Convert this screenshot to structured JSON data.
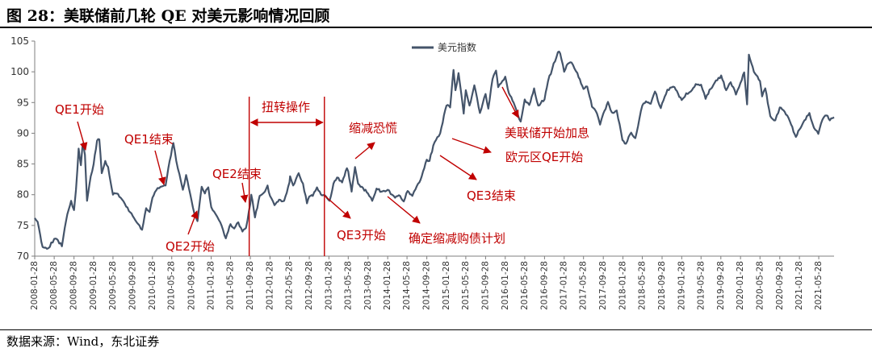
{
  "figure": {
    "title": "图 28：美联储前几轮 QE 对美元影响情况回顾",
    "source": "数据来源：Wind，东北证券"
  },
  "colors": {
    "series": "#44546a",
    "annotation": "#c00000",
    "axis": "#7f7f7f"
  },
  "chart_data": {
    "type": "line",
    "title": "",
    "xlabel": "",
    "ylabel": "",
    "ylim": [
      70,
      105
    ],
    "yticks": [
      70,
      75,
      80,
      85,
      90,
      95,
      100,
      105
    ],
    "xlim": [
      "2008-01-28",
      "2021-08-31"
    ],
    "xticks": [
      "2008-01-28",
      "2008-05-28",
      "2008-09-28",
      "2009-01-28",
      "2009-05-28",
      "2009-09-28",
      "2010-01-28",
      "2010-05-28",
      "2010-09-28",
      "2011-01-28",
      "2011-05-28",
      "2011-09-28",
      "2012-01-28",
      "2012-05-28",
      "2012-09-28",
      "2013-01-28",
      "2013-05-28",
      "2013-09-28",
      "2014-01-28",
      "2014-05-28",
      "2014-09-28",
      "2015-01-28",
      "2015-05-28",
      "2015-09-28",
      "2016-01-28",
      "2016-05-28",
      "2016-09-28",
      "2017-01-28",
      "2017-05-28",
      "2017-09-28",
      "2018-01-28",
      "2018-05-28",
      "2018-09-28",
      "2019-01-28",
      "2019-05-28",
      "2019-09-28",
      "2020-01-28",
      "2020-05-28",
      "2020-09-28",
      "2021-01-28",
      "2021-05-28"
    ],
    "grid": false,
    "legend": {
      "position": "top-center"
    },
    "series": [
      {
        "name": "美元指数",
        "points": [
          [
            "2008-01-28",
            76.2
          ],
          [
            "2008-02-15",
            75.6
          ],
          [
            "2008-03-17",
            71.5
          ],
          [
            "2008-04-22",
            71.3
          ],
          [
            "2008-05-28",
            72.8
          ],
          [
            "2008-06-20",
            72.6
          ],
          [
            "2008-07-15",
            71.6
          ],
          [
            "2008-08-10",
            75.8
          ],
          [
            "2008-08-25",
            77.5
          ],
          [
            "2008-09-10",
            79.0
          ],
          [
            "2008-09-28",
            77.5
          ],
          [
            "2008-10-10",
            80.8
          ],
          [
            "2008-10-27",
            87.5
          ],
          [
            "2008-11-10",
            84.8
          ],
          [
            "2008-11-21",
            88.3
          ],
          [
            "2008-12-05",
            86.5
          ],
          [
            "2008-12-18",
            79.0
          ],
          [
            "2009-01-10",
            83.0
          ],
          [
            "2009-01-28",
            85.0
          ],
          [
            "2009-02-18",
            88.8
          ],
          [
            "2009-03-04",
            89.0
          ],
          [
            "2009-03-19",
            83.5
          ],
          [
            "2009-04-10",
            85.5
          ],
          [
            "2009-04-28",
            84.5
          ],
          [
            "2009-05-28",
            80.0
          ],
          [
            "2009-06-20",
            80.2
          ],
          [
            "2009-07-15",
            79.5
          ],
          [
            "2009-08-10",
            78.5
          ],
          [
            "2009-09-28",
            76.5
          ],
          [
            "2009-10-15",
            75.8
          ],
          [
            "2009-11-25",
            74.3
          ],
          [
            "2009-12-20",
            77.8
          ],
          [
            "2010-01-10",
            77.2
          ],
          [
            "2010-01-28",
            79.5
          ],
          [
            "2010-02-20",
            80.7
          ],
          [
            "2010-03-20",
            81.3
          ],
          [
            "2010-04-20",
            81.5
          ],
          [
            "2010-05-15",
            85.5
          ],
          [
            "2010-06-07",
            88.4
          ],
          [
            "2010-06-25",
            85.5
          ],
          [
            "2010-07-15",
            83.3
          ],
          [
            "2010-08-05",
            80.8
          ],
          [
            "2010-08-25",
            83.2
          ],
          [
            "2010-09-28",
            79.0
          ],
          [
            "2010-10-15",
            77.0
          ],
          [
            "2010-11-04",
            75.7
          ],
          [
            "2010-11-30",
            81.3
          ],
          [
            "2010-12-20",
            80.2
          ],
          [
            "2011-01-10",
            81.2
          ],
          [
            "2011-01-28",
            78.0
          ],
          [
            "2011-02-25",
            76.8
          ],
          [
            "2011-03-25",
            75.5
          ],
          [
            "2011-04-29",
            72.9
          ],
          [
            "2011-05-28",
            75.2
          ],
          [
            "2011-06-20",
            74.5
          ],
          [
            "2011-07-15",
            75.5
          ],
          [
            "2011-08-10",
            74.0
          ],
          [
            "2011-09-01",
            74.6
          ],
          [
            "2011-09-28",
            78.5
          ],
          [
            "2011-10-04",
            80.0
          ],
          [
            "2011-10-27",
            76.3
          ],
          [
            "2011-11-25",
            79.8
          ],
          [
            "2011-12-20",
            80.3
          ],
          [
            "2012-01-13",
            81.5
          ],
          [
            "2012-01-28",
            79.8
          ],
          [
            "2012-02-25",
            78.3
          ],
          [
            "2012-03-25",
            79.2
          ],
          [
            "2012-04-25",
            79.0
          ],
          [
            "2012-05-28",
            82.0
          ],
          [
            "2012-06-01",
            83.0
          ],
          [
            "2012-06-20",
            81.5
          ],
          [
            "2012-07-24",
            83.5
          ],
          [
            "2012-08-20",
            81.8
          ],
          [
            "2012-09-14",
            78.6
          ],
          [
            "2012-09-28",
            79.7
          ],
          [
            "2012-10-20",
            79.8
          ],
          [
            "2012-11-15",
            81.2
          ],
          [
            "2012-12-10",
            80.0
          ],
          [
            "2013-01-10",
            79.7
          ],
          [
            "2013-02-01",
            79.0
          ],
          [
            "2013-02-25",
            81.8
          ],
          [
            "2013-03-20",
            82.8
          ],
          [
            "2013-04-20",
            82.0
          ],
          [
            "2013-05-20",
            84.3
          ],
          [
            "2013-05-28",
            83.8
          ],
          [
            "2013-06-18",
            80.5
          ],
          [
            "2013-07-09",
            84.5
          ],
          [
            "2013-07-28",
            81.8
          ],
          [
            "2013-08-20",
            81.3
          ],
          [
            "2013-09-28",
            80.2
          ],
          [
            "2013-10-24",
            79.0
          ],
          [
            "2013-11-20",
            81.0
          ],
          [
            "2013-12-20",
            80.5
          ],
          [
            "2014-01-28",
            80.8
          ],
          [
            "2014-02-25",
            80.0
          ],
          [
            "2014-03-15",
            79.5
          ],
          [
            "2014-04-15",
            79.8
          ],
          [
            "2014-05-08",
            78.9
          ],
          [
            "2014-06-01",
            80.6
          ],
          [
            "2014-06-30",
            79.8
          ],
          [
            "2014-07-20",
            80.9
          ],
          [
            "2014-08-20",
            82.4
          ],
          [
            "2014-09-28",
            85.7
          ],
          [
            "2014-10-15",
            85.5
          ],
          [
            "2014-11-07",
            88.0
          ],
          [
            "2014-12-20",
            90.0
          ],
          [
            "2015-01-28",
            94.5
          ],
          [
            "2015-02-20",
            94.2
          ],
          [
            "2015-03-13",
            100.3
          ],
          [
            "2015-03-25",
            97.0
          ],
          [
            "2015-04-13",
            99.8
          ],
          [
            "2015-05-15",
            93.2
          ],
          [
            "2015-05-28",
            97.0
          ],
          [
            "2015-06-20",
            94.5
          ],
          [
            "2015-07-20",
            97.8
          ],
          [
            "2015-08-24",
            93.3
          ],
          [
            "2015-09-28",
            96.4
          ],
          [
            "2015-10-15",
            94.0
          ],
          [
            "2015-11-10",
            98.8
          ],
          [
            "2015-12-02",
            100.2
          ],
          [
            "2015-12-15",
            97.5
          ],
          [
            "2016-01-28",
            99.2
          ],
          [
            "2016-02-20",
            96.5
          ],
          [
            "2016-03-20",
            95.0
          ],
          [
            "2016-05-03",
            91.9
          ],
          [
            "2016-05-28",
            95.5
          ],
          [
            "2016-06-25",
            94.6
          ],
          [
            "2016-07-25",
            97.3
          ],
          [
            "2016-08-20",
            94.5
          ],
          [
            "2016-09-28",
            95.5
          ],
          [
            "2016-10-20",
            98.5
          ],
          [
            "2016-11-15",
            100.5
          ],
          [
            "2016-12-20",
            103.2
          ],
          [
            "2017-01-03",
            103.0
          ],
          [
            "2017-01-28",
            100.0
          ],
          [
            "2017-02-20",
            101.3
          ],
          [
            "2017-03-15",
            101.5
          ],
          [
            "2017-04-20",
            99.8
          ],
          [
            "2017-05-28",
            97.2
          ],
          [
            "2017-06-20",
            97.6
          ],
          [
            "2017-07-20",
            94.3
          ],
          [
            "2017-08-20",
            93.2
          ],
          [
            "2017-09-08",
            91.4
          ],
          [
            "2017-09-28",
            93.2
          ],
          [
            "2017-10-27",
            95.1
          ],
          [
            "2017-11-20",
            93.4
          ],
          [
            "2017-12-20",
            93.7
          ],
          [
            "2018-01-25",
            88.9
          ],
          [
            "2018-02-16",
            88.3
          ],
          [
            "2018-03-20",
            90.1
          ],
          [
            "2018-04-15",
            89.2
          ],
          [
            "2018-05-28",
            94.5
          ],
          [
            "2018-06-20",
            95.2
          ],
          [
            "2018-07-20",
            94.8
          ],
          [
            "2018-08-15",
            96.8
          ],
          [
            "2018-09-20",
            94.1
          ],
          [
            "2018-10-31",
            97.1
          ],
          [
            "2018-12-14",
            97.5
          ],
          [
            "2019-01-28",
            95.4
          ],
          [
            "2019-02-25",
            96.5
          ],
          [
            "2019-03-25",
            96.8
          ],
          [
            "2019-04-25",
            98.0
          ],
          [
            "2019-05-28",
            97.9
          ],
          [
            "2019-06-25",
            95.6
          ],
          [
            "2019-07-20",
            97.1
          ],
          [
            "2019-08-20",
            98.2
          ],
          [
            "2019-09-30",
            99.4
          ],
          [
            "2019-10-31",
            97.0
          ],
          [
            "2019-11-28",
            98.3
          ],
          [
            "2019-12-31",
            96.3
          ],
          [
            "2020-01-28",
            98.2
          ],
          [
            "2020-02-20",
            99.9
          ],
          [
            "2020-03-09",
            94.7
          ],
          [
            "2020-03-20",
            102.8
          ],
          [
            "2020-04-20",
            100.0
          ],
          [
            "2020-05-28",
            98.5
          ],
          [
            "2020-06-10",
            96.0
          ],
          [
            "2020-06-30",
            97.3
          ],
          [
            "2020-07-31",
            92.8
          ],
          [
            "2020-08-31",
            92.1
          ],
          [
            "2020-09-28",
            94.2
          ],
          [
            "2020-10-28",
            93.5
          ],
          [
            "2020-11-30",
            91.9
          ],
          [
            "2021-01-06",
            89.4
          ],
          [
            "2021-01-28",
            90.6
          ],
          [
            "2021-03-31",
            93.3
          ],
          [
            "2021-04-28",
            90.9
          ],
          [
            "2021-05-25",
            89.9
          ],
          [
            "2021-06-20",
            92.2
          ],
          [
            "2021-07-15",
            92.9
          ],
          [
            "2021-08-05",
            92.1
          ],
          [
            "2021-08-31",
            92.6
          ]
        ]
      }
    ],
    "annotations": [
      {
        "id": "qe1-start",
        "text": "QE1开始"
      },
      {
        "id": "qe1-end",
        "text": "QE1结束"
      },
      {
        "id": "qe2-start",
        "text": "QE2开始"
      },
      {
        "id": "qe2-end",
        "text": "QE2结束"
      },
      {
        "id": "twist",
        "text": "扭转操作",
        "range": [
          "2011-09-21",
          "2012-12-31"
        ]
      },
      {
        "id": "qe3-start",
        "text": "QE3开始"
      },
      {
        "id": "taper-tantrum",
        "text": "缩减恐慌"
      },
      {
        "id": "taper-decided",
        "text": "确定缩减购债计划"
      },
      {
        "id": "qe3-end",
        "text": "QE3结束"
      },
      {
        "id": "fed-hike",
        "text": "美联储开始加息"
      },
      {
        "id": "ecb-qe",
        "text": "欧元区QE开始"
      }
    ]
  }
}
